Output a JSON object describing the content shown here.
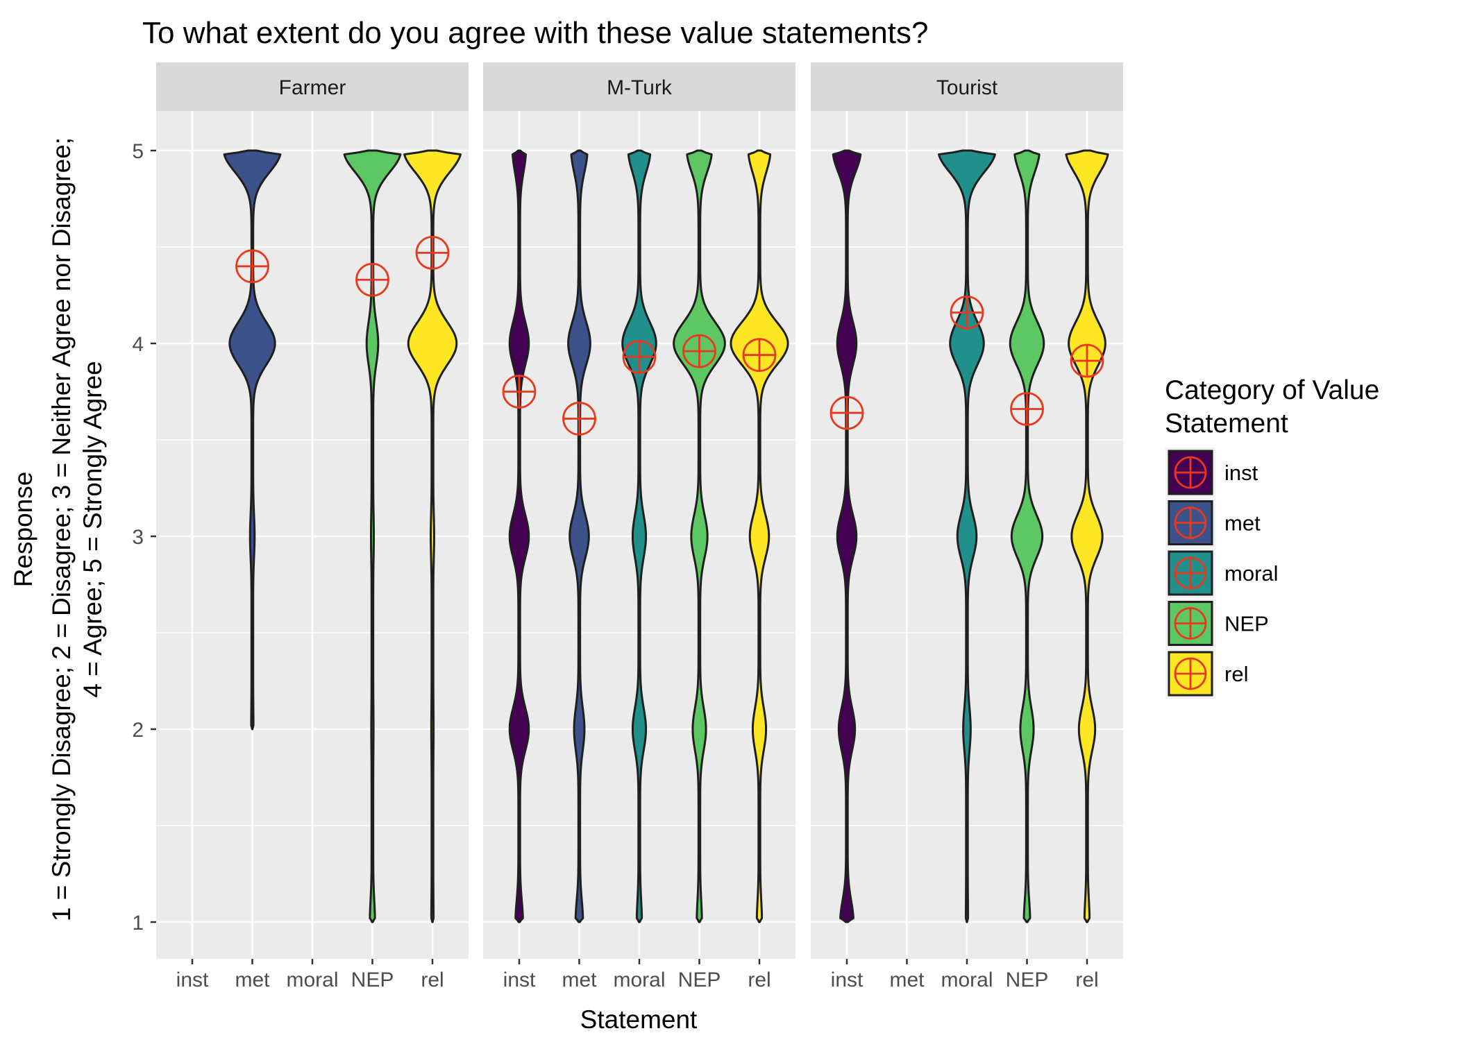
{
  "chart_data": {
    "type": "violin",
    "title": "To what extent do you agree with these value statements?",
    "xlabel": "Statement",
    "ylabel_lines": [
      "Response",
      "1 = Strongly Disagree; 2 = Disagree; 3 = Neither Agree nor Disagree;",
      "4 = Agree; 5 = Strongly Agree"
    ],
    "categories": [
      "inst",
      "met",
      "moral",
      "NEP",
      "rel"
    ],
    "yticks": [
      1,
      2,
      3,
      4,
      5
    ],
    "ylim": [
      0.8,
      5.2
    ],
    "grid": true,
    "legend": {
      "title_lines": [
        "Category of Value",
        "Statement"
      ],
      "placement": "right",
      "entries": [
        {
          "label": "inst",
          "color": "#440154"
        },
        {
          "label": "met",
          "color": "#3B528B"
        },
        {
          "label": "moral",
          "color": "#21908C"
        },
        {
          "label": "NEP",
          "color": "#5DC863"
        },
        {
          "label": "rel",
          "color": "#FDE725"
        }
      ]
    },
    "mean_marker_color": "#E8391D",
    "panels": [
      {
        "name": "Farmer",
        "violins": [
          {
            "category": "met",
            "min": 2,
            "max": 5,
            "mean": 4.4,
            "density": {
              "2": 0.01,
              "3": 0.05,
              "4": 0.75,
              "5": 0.95
            }
          },
          {
            "category": "NEP",
            "min": 1,
            "max": 5,
            "mean": 4.33,
            "density": {
              "1": 0.06,
              "2": 0.01,
              "3": 0.02,
              "4": 0.17,
              "5": 0.95
            }
          },
          {
            "category": "rel",
            "min": 1,
            "max": 5,
            "mean": 4.47,
            "density": {
              "1": 0.01,
              "2": 0.01,
              "3": 0.03,
              "4": 0.8,
              "5": 0.95
            }
          }
        ]
      },
      {
        "name": "M-Turk",
        "violins": [
          {
            "category": "inst",
            "min": 1,
            "max": 5,
            "mean": 3.75,
            "density": {
              "1": 0.1,
              "2": 0.3,
              "3": 0.3,
              "4": 0.3,
              "5": 0.2
            }
          },
          {
            "category": "met",
            "min": 1,
            "max": 5,
            "mean": 3.61,
            "density": {
              "1": 0.1,
              "2": 0.15,
              "3": 0.3,
              "4": 0.35,
              "5": 0.25
            }
          },
          {
            "category": "moral",
            "min": 1,
            "max": 5,
            "mean": 3.93,
            "density": {
              "1": 0.06,
              "2": 0.2,
              "3": 0.2,
              "4": 0.55,
              "5": 0.35
            }
          },
          {
            "category": "NEP",
            "min": 1,
            "max": 5,
            "mean": 3.96,
            "density": {
              "1": 0.06,
              "2": 0.2,
              "3": 0.25,
              "4": 0.85,
              "5": 0.4
            }
          },
          {
            "category": "rel",
            "min": 1,
            "max": 5,
            "mean": 3.94,
            "density": {
              "1": 0.06,
              "2": 0.2,
              "3": 0.3,
              "4": 0.95,
              "5": 0.35
            }
          }
        ]
      },
      {
        "name": "Tourist",
        "violins": [
          {
            "category": "inst",
            "min": 1,
            "max": 5,
            "mean": 3.64,
            "density": {
              "1": 0.2,
              "2": 0.25,
              "3": 0.3,
              "4": 0.3,
              "5": 0.45
            }
          },
          {
            "category": "moral",
            "min": 1,
            "max": 5,
            "mean": 4.16,
            "density": {
              "1": 0.01,
              "2": 0.1,
              "3": 0.3,
              "4": 0.55,
              "5": 0.95
            }
          },
          {
            "category": "NEP",
            "min": 1,
            "max": 5,
            "mean": 3.66,
            "density": {
              "1": 0.08,
              "2": 0.2,
              "3": 0.5,
              "4": 0.55,
              "5": 0.4
            }
          },
          {
            "category": "rel",
            "min": 1,
            "max": 5,
            "mean": 3.91,
            "density": {
              "1": 0.06,
              "2": 0.25,
              "3": 0.5,
              "4": 0.6,
              "5": 0.7
            }
          }
        ]
      }
    ]
  }
}
